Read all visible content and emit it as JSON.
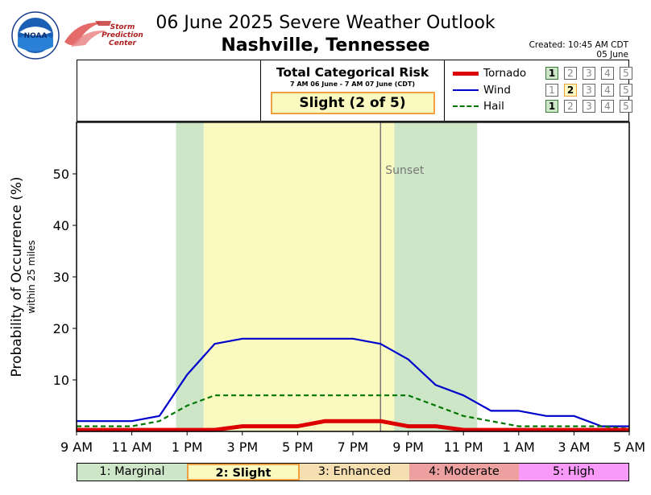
{
  "title": "06 June 2025 Severe Weather Outlook",
  "location": "Nashville, Tennessee",
  "created": [
    "Created: 10:45 AM CDT",
    "05 June"
  ],
  "logos": {
    "noaa_text": "NOAA",
    "spc_lines": [
      "Storm",
      "Prediction",
      "Center"
    ]
  },
  "risk_panel": {
    "title": "Total Categorical Risk",
    "period": "7 AM 06 June - 7 AM 07 June (CDT)",
    "level_label": "Slight (2 of 5)"
  },
  "legend": [
    {
      "name": "Tornado",
      "color": "#dd0000",
      "style": "solid",
      "width": "thick",
      "selected_level": 1
    },
    {
      "name": "Wind",
      "color": "#0000cc",
      "style": "solid",
      "width": "normal",
      "selected_level": 2
    },
    {
      "name": "Hail",
      "color": "#007700",
      "style": "dashed",
      "width": "normal",
      "selected_level": 1
    }
  ],
  "risk_scale": [
    {
      "label": "1: Marginal",
      "color": "#cde6c8"
    },
    {
      "label": "2: Slight",
      "color": "#fafac0",
      "selected": true,
      "border": "#f0a040"
    },
    {
      "label": "3: Enhanced",
      "color": "#f5deb0"
    },
    {
      "label": "4: Moderate",
      "color": "#eda0a0"
    },
    {
      "label": "5: High",
      "color": "#f89af8"
    }
  ],
  "chart_data": {
    "type": "line",
    "ylabel": "Probability of Occurrence (%)",
    "ylabel_sub": "within 25 miles",
    "ylim": [
      0,
      60
    ],
    "yticks": [
      10,
      20,
      30,
      40,
      50
    ],
    "xlim": [
      0,
      20
    ],
    "xticks": [
      {
        "x": 0,
        "label": "9 AM"
      },
      {
        "x": 2,
        "label": "11 AM"
      },
      {
        "x": 4,
        "label": "1 PM"
      },
      {
        "x": 6,
        "label": "3 PM"
      },
      {
        "x": 8,
        "label": "5 PM"
      },
      {
        "x": 10,
        "label": "7 PM"
      },
      {
        "x": 12,
        "label": "9 PM"
      },
      {
        "x": 14,
        "label": "11 PM"
      },
      {
        "x": 16,
        "label": "1 AM"
      },
      {
        "x": 18,
        "label": "3 AM"
      },
      {
        "x": 20,
        "label": "5 AM"
      }
    ],
    "x_hours": [
      0,
      1,
      2,
      3,
      4,
      5,
      6,
      7,
      8,
      9,
      10,
      11,
      12,
      13,
      14,
      15,
      16,
      17,
      18,
      19,
      20
    ],
    "series": [
      {
        "name": "Wind",
        "color": "#0000cc",
        "style": "solid",
        "values": [
          2,
          2,
          2,
          3,
          11,
          17,
          18,
          18,
          18,
          18,
          18,
          17,
          14,
          9,
          7,
          4,
          4,
          3,
          3,
          1,
          1
        ]
      },
      {
        "name": "Hail",
        "color": "#007700",
        "style": "dashed",
        "values": [
          1,
          1,
          1,
          2,
          5,
          7,
          7,
          7,
          7,
          7,
          7,
          7,
          7,
          5,
          3,
          2,
          1,
          1,
          1,
          1,
          0.5
        ]
      },
      {
        "name": "Tornado",
        "color": "#dd0000",
        "style": "solid",
        "values": [
          0.3,
          0.3,
          0.3,
          0.3,
          0.3,
          0.3,
          1,
          1,
          1,
          2,
          2,
          2,
          1,
          1,
          0.3,
          0.3,
          0.3,
          0.3,
          0.3,
          0.3,
          0.3
        ]
      }
    ],
    "risk_bands": [
      {
        "from": 3.6,
        "to": 4.6,
        "level": "marginal",
        "color": "#cde6c8"
      },
      {
        "from": 4.6,
        "to": 11.5,
        "level": "slight",
        "color": "#fafac0"
      },
      {
        "from": 11.5,
        "to": 14.5,
        "level": "marginal",
        "color": "#cde6c8"
      }
    ],
    "sunset": {
      "x": 11.0,
      "label": "Sunset"
    }
  }
}
